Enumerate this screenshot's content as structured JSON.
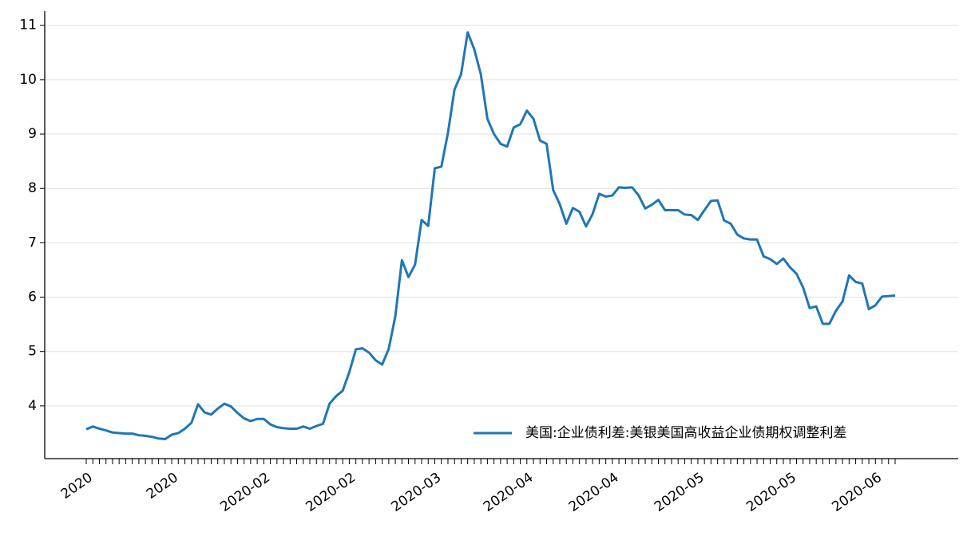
{
  "chart_data": {
    "type": "line",
    "categories": [
      "2020",
      null,
      null,
      null,
      null,
      null,
      null,
      null,
      null,
      null,
      null,
      null,
      null,
      "2020",
      null,
      null,
      null,
      null,
      null,
      null,
      null,
      null,
      null,
      null,
      null,
      null,
      null,
      "2020-02",
      null,
      null,
      null,
      null,
      null,
      null,
      null,
      null,
      null,
      null,
      null,
      null,
      "2020-02",
      null,
      null,
      null,
      null,
      null,
      null,
      null,
      null,
      null,
      null,
      null,
      null,
      "2020-03",
      null,
      null,
      null,
      null,
      null,
      null,
      null,
      null,
      null,
      null,
      null,
      null,
      null,
      "2020-04",
      null,
      null,
      null,
      null,
      null,
      null,
      null,
      null,
      null,
      null,
      null,
      null,
      "2020-04",
      null,
      null,
      null,
      null,
      null,
      null,
      null,
      null,
      null,
      null,
      null,
      null,
      "2020-05",
      null,
      null,
      null,
      null,
      null,
      null,
      null,
      null,
      null,
      null,
      null,
      null,
      null,
      "2020-05",
      null,
      null,
      null,
      null,
      null,
      null,
      null,
      null,
      null,
      null,
      null,
      null,
      "2020-06",
      null,
      null,
      null
    ],
    "series": [
      {
        "name": "美国:企业债利差:美银美国高收益企业债期权调整利差",
        "color": "#1f77b4",
        "values": [
          3.57,
          3.62,
          3.58,
          3.55,
          3.51,
          3.5,
          3.49,
          3.49,
          3.46,
          3.45,
          3.43,
          3.4,
          3.39,
          3.47,
          3.5,
          3.58,
          3.69,
          4.03,
          3.88,
          3.84,
          3.95,
          4.04,
          3.99,
          3.87,
          3.77,
          3.72,
          3.76,
          3.76,
          3.66,
          3.61,
          3.59,
          3.58,
          3.58,
          3.62,
          3.58,
          3.63,
          3.67,
          4.04,
          4.18,
          4.28,
          4.62,
          5.04,
          5.06,
          4.98,
          4.84,
          4.76,
          5.05,
          5.65,
          6.68,
          6.37,
          6.6,
          7.42,
          7.31,
          8.37,
          8.4,
          9.02,
          9.82,
          10.1,
          10.87,
          10.56,
          10.1,
          9.28,
          9.0,
          8.82,
          8.77,
          9.12,
          9.18,
          9.43,
          9.28,
          8.88,
          8.82,
          7.97,
          7.71,
          7.35,
          7.64,
          7.57,
          7.3,
          7.53,
          7.9,
          7.85,
          7.87,
          8.02,
          8.01,
          8.02,
          7.87,
          7.63,
          7.7,
          7.79,
          7.6,
          7.6,
          7.6,
          7.52,
          7.51,
          7.42,
          7.6,
          7.77,
          7.78,
          7.41,
          7.35,
          7.15,
          7.08,
          7.06,
          7.06,
          6.75,
          6.7,
          6.61,
          6.71,
          6.55,
          6.43,
          6.18,
          5.8,
          5.83,
          5.51,
          5.51,
          5.75,
          5.92,
          6.4,
          6.28,
          6.25,
          5.78,
          5.85,
          6.01,
          6.02,
          6.03
        ]
      }
    ],
    "ylim": [
      3.03,
      11.26
    ],
    "yticks": [
      4,
      5,
      6,
      7,
      8,
      9,
      10,
      11
    ],
    "grid": true,
    "legend": "lower right"
  }
}
